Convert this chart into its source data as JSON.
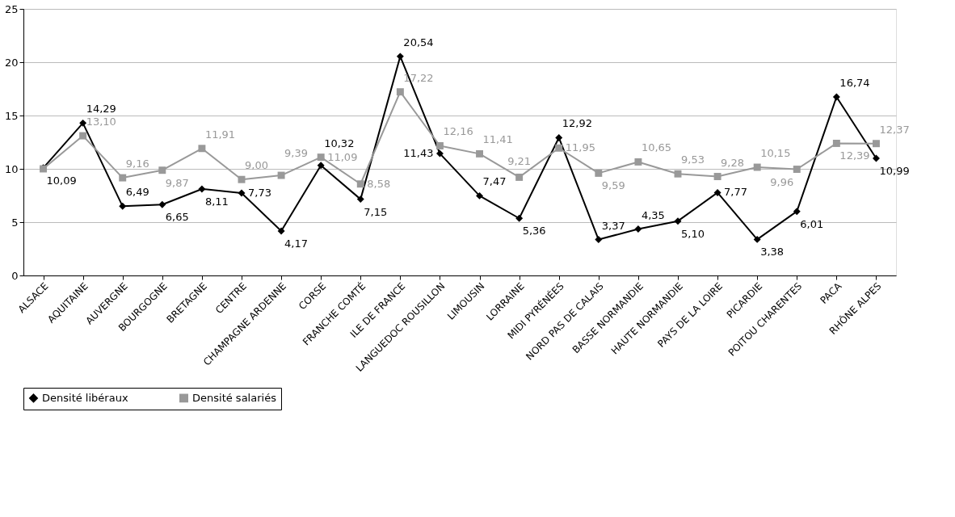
{
  "chart_data": {
    "type": "line",
    "categories": [
      "ALSACE",
      "AQUITAINE",
      "AUVERGNE",
      "BOURGOGNE",
      "BRETAGNE",
      "CENTRE",
      "CHAMPAGNE ARDENNE",
      "CORSE",
      "FRANCHE COMTÉ",
      "ILE DE FRANCE",
      "LANGUEDOC ROUSILLON",
      "LIMOUSIN",
      "LORRAINE",
      "MIDI PYRÉNÉES",
      "NORD PAS DE CALAIS",
      "BASSE NORMANDIE",
      "HAUTE NORMANDIE",
      "PAYS DE LA LOIRE",
      "PICARDIE",
      "POITOU CHARENTES",
      "PACA",
      "RHÔNE ALPES"
    ],
    "series": [
      {
        "name": "Densité libéraux",
        "color": "#000000",
        "marker": "diamond",
        "values": [
          10.09,
          14.29,
          6.49,
          6.65,
          8.11,
          7.73,
          4.17,
          10.32,
          7.15,
          20.54,
          11.43,
          7.47,
          5.36,
          12.92,
          3.37,
          4.35,
          5.1,
          7.77,
          3.38,
          6.01,
          16.74,
          10.99
        ],
        "value_labels": [
          "10,09",
          "14,29",
          "6,49",
          "6,65",
          "8,11",
          "7,73",
          "4,17",
          "10,32",
          "7,15",
          "20,54",
          "11,43",
          "7,47",
          "5,36",
          "12,92",
          "3,37",
          "4,35",
          "5,10",
          "7,77",
          "3,38",
          "6,01",
          "16,74",
          "10,99"
        ]
      },
      {
        "name": "Densité salariés",
        "color": "#999999",
        "marker": "square",
        "values": [
          10.0,
          13.1,
          9.16,
          9.87,
          11.91,
          9.0,
          9.39,
          11.09,
          8.58,
          17.22,
          12.16,
          11.41,
          9.21,
          11.95,
          9.59,
          10.65,
          9.53,
          9.28,
          10.15,
          9.96,
          12.39,
          12.37
        ],
        "value_labels": [
          null,
          "13,10",
          "9,16",
          "9,87",
          "11,91",
          "9,00",
          "9,39",
          "11,09",
          "8,58",
          "17,22",
          "12,16",
          "11,41",
          "9,21",
          "11,95",
          "9,59",
          "10,65",
          "9,53",
          "9,28",
          "10,15",
          "9,96",
          "12,39",
          "12,37"
        ]
      }
    ],
    "ylim": [
      0,
      25
    ],
    "yticks": [
      0,
      5,
      10,
      15,
      20,
      25
    ],
    "grid": "y",
    "legend": "bottom",
    "line_style": "solid"
  }
}
